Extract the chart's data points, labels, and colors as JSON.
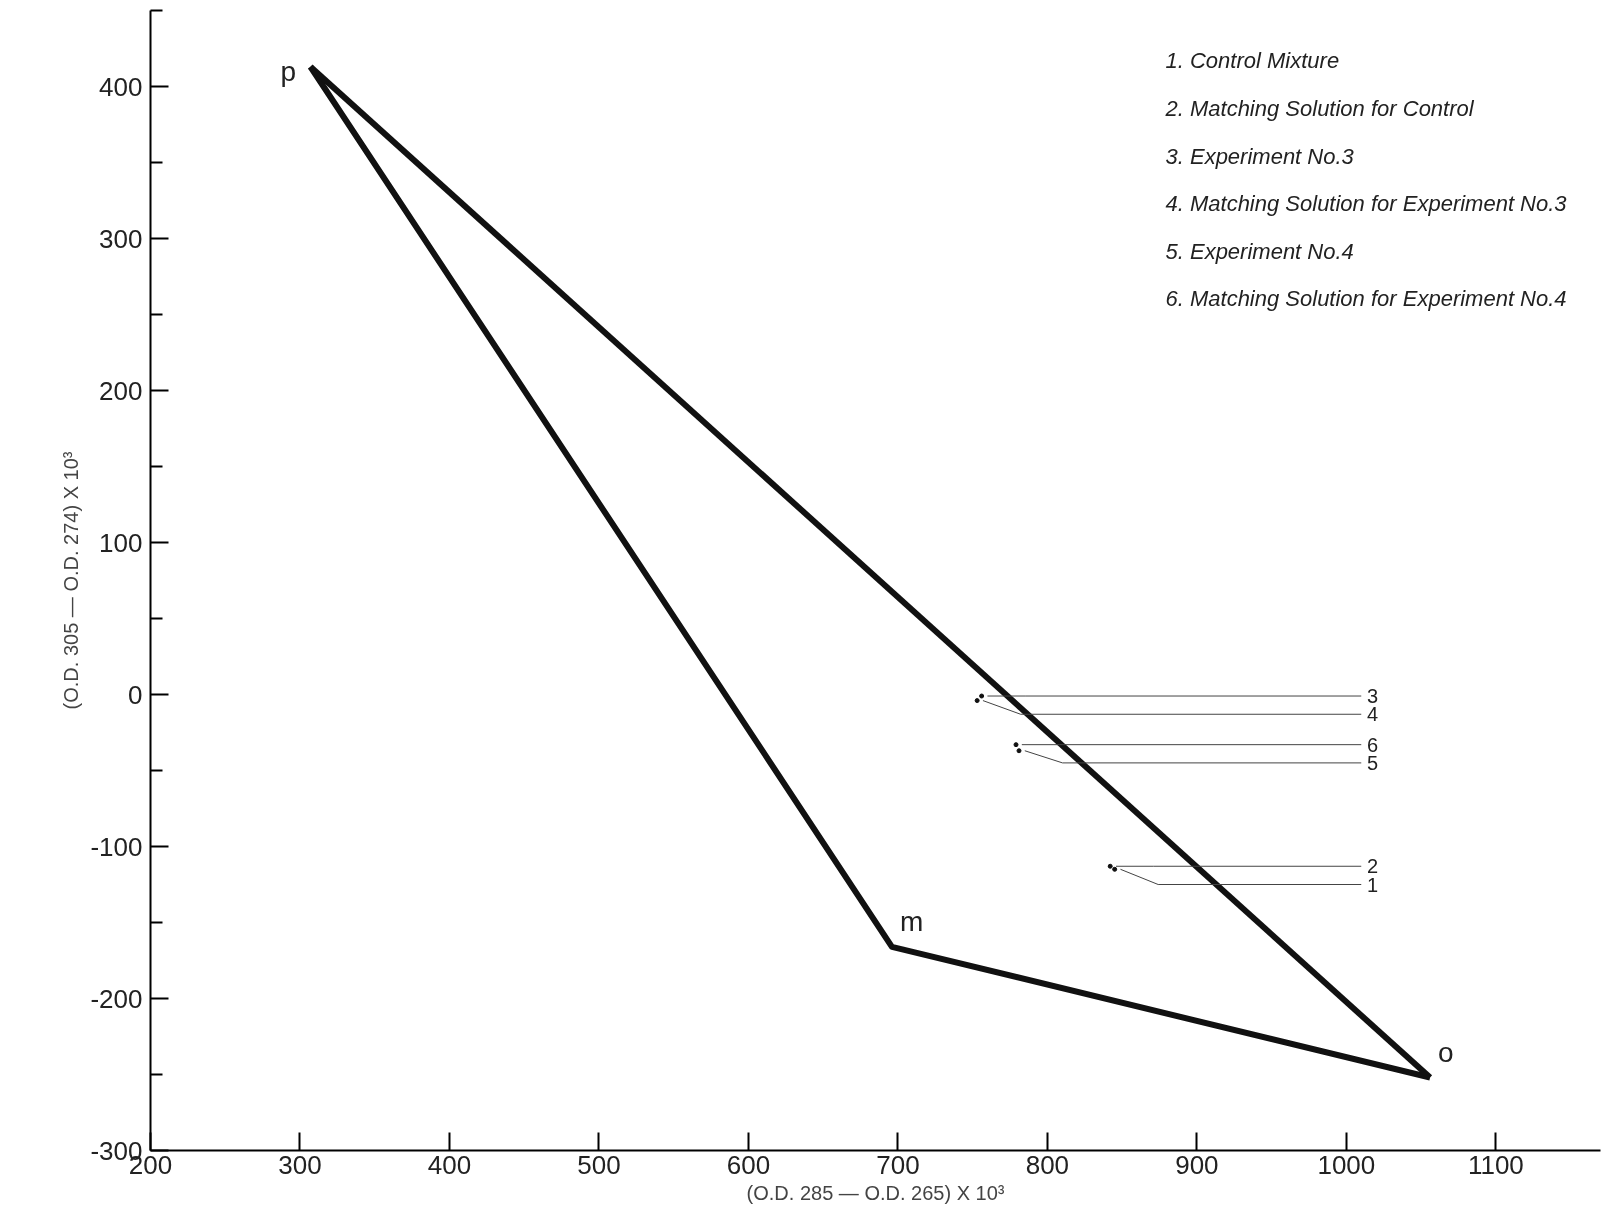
{
  "chart_data": {
    "type": "line",
    "xlabel": "(O.D. 285 — O.D. 265) X 10³",
    "ylabel": "(O.D. 305 — O.D. 274) X 10³",
    "series": [
      {
        "color": "#111111",
        "x": [
          307,
          696,
          1056
        ],
        "values": [
          413,
          -166,
          -252
        ]
      },
      {
        "color": "#111111",
        "x": [
          307,
          1056
        ],
        "values": [
          413,
          -252
        ]
      },
      {
        "type": "scatter",
        "color": "#111111",
        "x": [
          845,
          842,
          756,
          753,
          781,
          779
        ],
        "values": [
          -115,
          -113,
          -1,
          -4,
          -37,
          -33
        ]
      }
    ],
    "xlim": [
      200,
      1170
    ],
    "ylim": [
      -300,
      450
    ],
    "xticks": [
      200,
      300,
      400,
      500,
      600,
      700,
      800,
      900,
      1000,
      1100
    ],
    "yticks": [
      -300,
      {
        "value": -250,
        "label": null
      },
      -200,
      {
        "value": -150,
        "label": null
      },
      -100,
      {
        "value": -50,
        "label": null
      },
      0,
      {
        "value": 50,
        "label": null
      },
      100,
      {
        "value": 150,
        "label": null
      },
      200,
      {
        "value": 250,
        "label": null
      },
      300,
      {
        "value": 350,
        "label": null
      },
      400,
      {
        "value": 450,
        "label": null
      }
    ],
    "grid": false,
    "line_style": "solid",
    "annotations": [
      "1. Control Mixture",
      "2. Matching Solution for Control",
      "3. Experiment No.3",
      "4. Matching Solution for Experiment No.3",
      "5. Experiment No.4",
      "6. Matching Solution for Experiment No.4",
      {
        "text": "p",
        "x": 307,
        "y": 413
      },
      {
        "text": "m",
        "x": 696,
        "y": -166
      },
      {
        "text": "o",
        "x": 1056,
        "y": -252
      },
      {
        "text": "1",
        "x": 845,
        "y": -115
      },
      {
        "text": "2",
        "x": 842,
        "y": -113
      },
      {
        "text": "3",
        "x": 756,
        "y": -1
      },
      {
        "text": "4",
        "x": 753,
        "y": -4
      },
      {
        "text": "5",
        "x": 781,
        "y": -37
      },
      {
        "text": "6",
        "x": 779,
        "y": -33
      }
    ]
  }
}
